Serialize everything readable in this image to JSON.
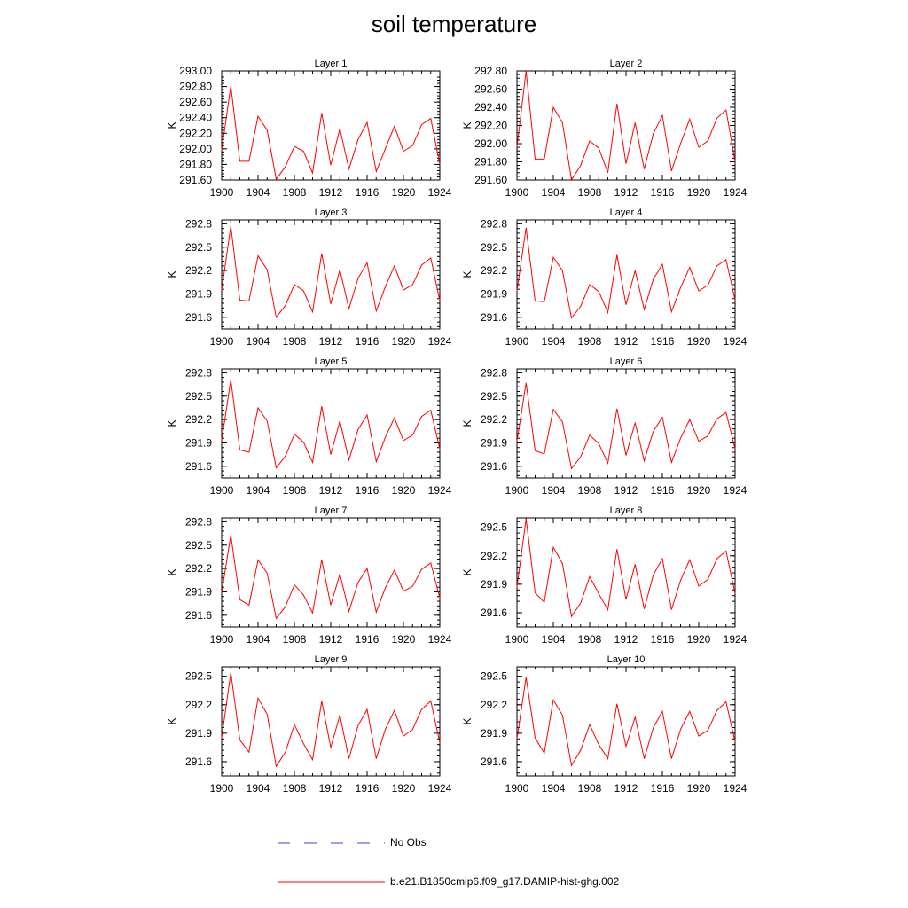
{
  "title": "soil temperature",
  "legend": {
    "items": [
      {
        "label": "No Obs",
        "color": "#3b46c8",
        "style": "dashed"
      },
      {
        "label": "b.e21.B1850cmip6.f09_g17.DAMIP-hist-ghg.002",
        "color": "#ff0000",
        "style": "solid"
      }
    ]
  },
  "chart_data": [
    {
      "type": "line",
      "title": "Layer 1",
      "ylabel": "K",
      "xlim": [
        1900,
        1924
      ],
      "ylim": [
        291.6,
        293.0
      ],
      "xticks": [
        "1900",
        "1904",
        "1908",
        "1912",
        "1916",
        "1920",
        "1924"
      ],
      "yticks": [
        "291.60",
        "291.80",
        "292.00",
        "292.20",
        "292.40",
        "292.60",
        "292.80",
        "293.00"
      ],
      "x": [
        1900,
        1901,
        1902,
        1903,
        1904,
        1905,
        1906,
        1907,
        1908,
        1909,
        1910,
        1911,
        1912,
        1913,
        1914,
        1915,
        1916,
        1917,
        1918,
        1919,
        1920,
        1921,
        1922,
        1923,
        1924
      ],
      "series": [
        {
          "color": "#ff0000",
          "values": [
            291.98,
            292.81,
            291.84,
            291.84,
            292.42,
            292.24,
            291.61,
            291.77,
            292.03,
            291.97,
            291.69,
            292.46,
            291.79,
            292.26,
            291.74,
            292.12,
            292.34,
            291.71,
            292.0,
            292.29,
            291.97,
            292.04,
            292.31,
            292.39,
            291.8
          ]
        }
      ]
    },
    {
      "type": "line",
      "title": "Layer 2",
      "ylabel": "K",
      "xlim": [
        1900,
        1924
      ],
      "ylim": [
        291.6,
        292.8
      ],
      "xticks": [
        "1900",
        "1904",
        "1908",
        "1912",
        "1916",
        "1920",
        "1924"
      ],
      "yticks": [
        "291.60",
        "291.80",
        "292.00",
        "292.20",
        "292.40",
        "292.60",
        "292.80"
      ],
      "x": [
        1900,
        1901,
        1902,
        1903,
        1904,
        1905,
        1906,
        1907,
        1908,
        1909,
        1910,
        1911,
        1912,
        1913,
        1914,
        1915,
        1916,
        1917,
        1918,
        1919,
        1920,
        1921,
        1922,
        1923,
        1924
      ],
      "series": [
        {
          "color": "#ff0000",
          "values": [
            291.96,
            292.8,
            291.83,
            291.83,
            292.4,
            292.23,
            291.6,
            291.76,
            292.03,
            291.95,
            291.68,
            292.44,
            291.78,
            292.23,
            291.72,
            292.11,
            292.31,
            291.7,
            292.0,
            292.27,
            291.96,
            292.03,
            292.28,
            292.37,
            291.8
          ]
        }
      ]
    },
    {
      "type": "line",
      "title": "Layer 3",
      "ylabel": "K",
      "xlim": [
        1900,
        1924
      ],
      "ylim": [
        291.45,
        292.85
      ],
      "xticks": [
        "1900",
        "1904",
        "1908",
        "1912",
        "1916",
        "1920",
        "1924"
      ],
      "yticks": [
        "291.6",
        "291.9",
        "292.2",
        "292.5",
        "292.8"
      ],
      "x": [
        1900,
        1901,
        1902,
        1903,
        1904,
        1905,
        1906,
        1907,
        1908,
        1909,
        1910,
        1911,
        1912,
        1913,
        1914,
        1915,
        1916,
        1917,
        1918,
        1919,
        1920,
        1921,
        1922,
        1923,
        1924
      ],
      "series": [
        {
          "color": "#ff0000",
          "values": [
            291.95,
            292.77,
            291.82,
            291.81,
            292.39,
            292.21,
            291.6,
            291.75,
            292.02,
            291.94,
            291.67,
            292.42,
            291.77,
            292.21,
            291.71,
            292.1,
            292.3,
            291.68,
            291.99,
            292.26,
            291.95,
            292.02,
            292.27,
            292.36,
            291.81
          ]
        }
      ]
    },
    {
      "type": "line",
      "title": "Layer 4",
      "ylabel": "K",
      "xlim": [
        1900,
        1924
      ],
      "ylim": [
        291.45,
        292.85
      ],
      "xticks": [
        "1900",
        "1904",
        "1908",
        "1912",
        "1916",
        "1920",
        "1924"
      ],
      "yticks": [
        "291.6",
        "291.9",
        "292.2",
        "292.5",
        "292.8"
      ],
      "x": [
        1900,
        1901,
        1902,
        1903,
        1904,
        1905,
        1906,
        1907,
        1908,
        1909,
        1910,
        1911,
        1912,
        1913,
        1914,
        1915,
        1916,
        1917,
        1918,
        1919,
        1920,
        1921,
        1922,
        1923,
        1924
      ],
      "series": [
        {
          "color": "#ff0000",
          "values": [
            291.94,
            292.75,
            291.81,
            291.8,
            292.37,
            292.2,
            291.59,
            291.74,
            292.02,
            291.93,
            291.66,
            292.4,
            291.76,
            292.2,
            291.7,
            292.09,
            292.28,
            291.67,
            291.98,
            292.24,
            291.94,
            292.01,
            292.26,
            292.34,
            291.82
          ]
        }
      ]
    },
    {
      "type": "line",
      "title": "Layer 5",
      "ylabel": "K",
      "xlim": [
        1900,
        1924
      ],
      "ylim": [
        291.45,
        292.85
      ],
      "xticks": [
        "1900",
        "1904",
        "1908",
        "1912",
        "1916",
        "1920",
        "1924"
      ],
      "yticks": [
        "291.6",
        "291.9",
        "292.2",
        "292.5",
        "292.8"
      ],
      "x": [
        1900,
        1901,
        1902,
        1903,
        1904,
        1905,
        1906,
        1907,
        1908,
        1909,
        1910,
        1911,
        1912,
        1913,
        1914,
        1915,
        1916,
        1917,
        1918,
        1919,
        1920,
        1921,
        1922,
        1923,
        1924
      ],
      "series": [
        {
          "color": "#ff0000",
          "values": [
            291.93,
            292.71,
            291.81,
            291.78,
            292.35,
            292.18,
            291.58,
            291.73,
            292.01,
            291.91,
            291.65,
            292.37,
            291.75,
            292.18,
            291.68,
            292.07,
            292.26,
            291.66,
            291.97,
            292.22,
            291.93,
            292.0,
            292.24,
            292.32,
            291.82
          ]
        }
      ]
    },
    {
      "type": "line",
      "title": "Layer 6",
      "ylabel": "K",
      "xlim": [
        1900,
        1924
      ],
      "ylim": [
        291.45,
        292.85
      ],
      "xticks": [
        "1900",
        "1904",
        "1908",
        "1912",
        "1916",
        "1920",
        "1924"
      ],
      "yticks": [
        "291.6",
        "291.9",
        "292.2",
        "292.5",
        "292.8"
      ],
      "x": [
        1900,
        1901,
        1902,
        1903,
        1904,
        1905,
        1906,
        1907,
        1908,
        1909,
        1910,
        1911,
        1912,
        1913,
        1914,
        1915,
        1916,
        1917,
        1918,
        1919,
        1920,
        1921,
        1922,
        1923,
        1924
      ],
      "series": [
        {
          "color": "#ff0000",
          "values": [
            291.92,
            292.67,
            291.8,
            291.76,
            292.33,
            292.17,
            291.57,
            291.72,
            292.0,
            291.89,
            291.64,
            292.34,
            291.74,
            292.16,
            291.67,
            292.05,
            292.23,
            291.65,
            291.96,
            292.2,
            291.92,
            291.99,
            292.21,
            292.29,
            291.82
          ]
        }
      ]
    },
    {
      "type": "line",
      "title": "Layer 7",
      "ylabel": "K",
      "xlim": [
        1900,
        1924
      ],
      "ylim": [
        291.45,
        292.85
      ],
      "xticks": [
        "1900",
        "1904",
        "1908",
        "1912",
        "1916",
        "1920",
        "1924"
      ],
      "yticks": [
        "291.6",
        "291.9",
        "292.2",
        "292.5",
        "292.8"
      ],
      "x": [
        1900,
        1901,
        1902,
        1903,
        1904,
        1905,
        1906,
        1907,
        1908,
        1909,
        1910,
        1911,
        1912,
        1913,
        1914,
        1915,
        1916,
        1917,
        1918,
        1919,
        1920,
        1921,
        1922,
        1923,
        1924
      ],
      "series": [
        {
          "color": "#ff0000",
          "values": [
            291.89,
            292.63,
            291.8,
            291.73,
            292.31,
            292.14,
            291.56,
            291.71,
            291.99,
            291.86,
            291.63,
            292.31,
            291.73,
            292.13,
            291.65,
            292.02,
            292.2,
            291.64,
            291.95,
            292.18,
            291.91,
            291.97,
            292.19,
            292.27,
            291.82
          ]
        }
      ]
    },
    {
      "type": "line",
      "title": "Layer 8",
      "ylabel": "K",
      "xlim": [
        1900,
        1924
      ],
      "ylim": [
        291.45,
        292.6
      ],
      "xticks": [
        "1900",
        "1904",
        "1908",
        "1912",
        "1916",
        "1920",
        "1924"
      ],
      "yticks": [
        "291.6",
        "291.9",
        "292.2",
        "292.5"
      ],
      "x": [
        1900,
        1901,
        1902,
        1903,
        1904,
        1905,
        1906,
        1907,
        1908,
        1909,
        1910,
        1911,
        1912,
        1913,
        1914,
        1915,
        1916,
        1917,
        1918,
        1919,
        1920,
        1921,
        1922,
        1923,
        1924
      ],
      "series": [
        {
          "color": "#ff0000",
          "values": [
            291.87,
            292.59,
            291.81,
            291.71,
            292.29,
            292.12,
            291.56,
            291.7,
            291.98,
            291.8,
            291.63,
            292.27,
            291.74,
            292.11,
            291.64,
            292.0,
            292.17,
            291.63,
            291.94,
            292.16,
            291.88,
            291.95,
            292.17,
            292.25,
            291.8
          ]
        }
      ]
    },
    {
      "type": "line",
      "title": "Layer 9",
      "ylabel": "K",
      "xlim": [
        1900,
        1924
      ],
      "ylim": [
        291.45,
        292.6
      ],
      "xticks": [
        "1900",
        "1904",
        "1908",
        "1912",
        "1916",
        "1920",
        "1924"
      ],
      "yticks": [
        "291.6",
        "291.9",
        "292.2",
        "292.5"
      ],
      "x": [
        1900,
        1901,
        1902,
        1903,
        1904,
        1905,
        1906,
        1907,
        1908,
        1909,
        1910,
        1911,
        1912,
        1913,
        1914,
        1915,
        1916,
        1917,
        1918,
        1919,
        1920,
        1921,
        1922,
        1923,
        1924
      ],
      "series": [
        {
          "color": "#ff0000",
          "values": [
            291.85,
            292.54,
            291.83,
            291.7,
            292.27,
            292.1,
            291.55,
            291.7,
            291.99,
            291.79,
            291.62,
            292.24,
            291.75,
            292.09,
            291.63,
            291.98,
            292.15,
            291.63,
            291.94,
            292.14,
            291.87,
            291.94,
            292.15,
            292.24,
            291.8
          ]
        }
      ]
    },
    {
      "type": "line",
      "title": "Layer 10",
      "ylabel": "K",
      "xlim": [
        1900,
        1924
      ],
      "ylim": [
        291.45,
        292.6
      ],
      "xticks": [
        "1900",
        "1904",
        "1908",
        "1912",
        "1916",
        "1920",
        "1924"
      ],
      "yticks": [
        "291.6",
        "291.9",
        "292.2",
        "292.5"
      ],
      "x": [
        1900,
        1901,
        1902,
        1903,
        1904,
        1905,
        1906,
        1907,
        1908,
        1909,
        1910,
        1911,
        1912,
        1913,
        1914,
        1915,
        1916,
        1917,
        1918,
        1919,
        1920,
        1921,
        1922,
        1923,
        1924
      ],
      "series": [
        {
          "color": "#ff0000",
          "values": [
            291.84,
            292.49,
            291.85,
            291.69,
            292.25,
            292.09,
            291.56,
            291.72,
            291.99,
            291.78,
            291.63,
            292.21,
            291.76,
            292.07,
            291.63,
            291.96,
            292.13,
            291.63,
            291.94,
            292.13,
            291.87,
            291.93,
            292.14,
            292.23,
            291.81
          ]
        }
      ]
    }
  ]
}
